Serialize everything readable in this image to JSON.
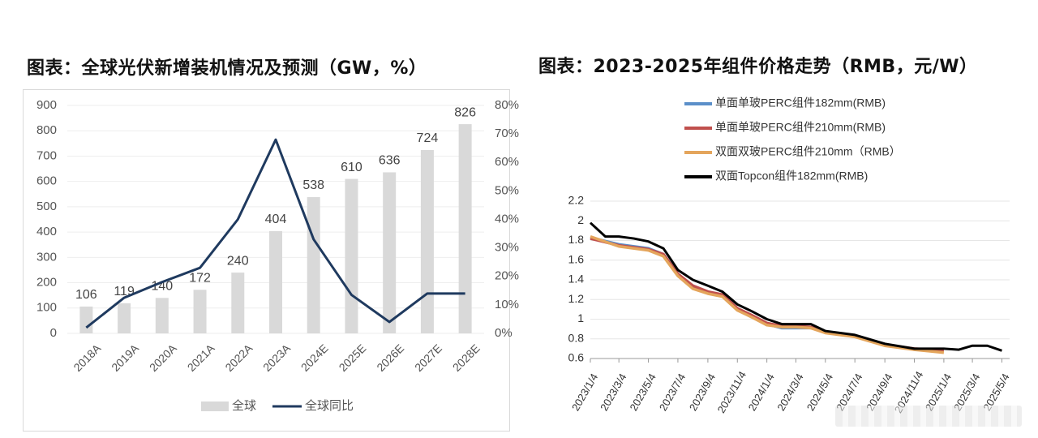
{
  "left": {
    "title": "图表：全球光伏新增装机情况及预测（GW，%）",
    "legend": [
      {
        "name": "全球",
        "color": "#d9d9d9"
      },
      {
        "name": "全球同比",
        "color": "#1f3a5f"
      }
    ]
  },
  "right": {
    "title": "图表：2023-2025年组件价格走势（RMB，元/W）",
    "legend": [
      {
        "name": "单面单玻PERC组件182mm(RMB)",
        "color": "#5b8fc9"
      },
      {
        "name": "单面单玻PERC组件210mm(RMB)",
        "color": "#c0504d"
      },
      {
        "name": "双面双玻PERC组件210mm（RMB）",
        "color": "#e4a55c"
      },
      {
        "name": "双面Topcon组件182mm(RMB)",
        "color": "#000000"
      }
    ]
  },
  "chart_data": [
    {
      "type": "bar",
      "title": "图表：全球光伏新增装机情况及预测（GW，%）",
      "categories": [
        "2018A",
        "2019A",
        "2020A",
        "2021A",
        "2022A",
        "2023A",
        "2024E",
        "2025E",
        "2026E",
        "2027E",
        "2028E"
      ],
      "ylim": [
        0,
        900
      ],
      "y2lim": [
        0,
        0.8
      ],
      "y_ticks": [
        "0",
        "100",
        "200",
        "300",
        "400",
        "500",
        "600",
        "700",
        "800",
        "900"
      ],
      "y2_ticks": [
        "0%",
        "10%",
        "20%",
        "30%",
        "40%",
        "50%",
        "60%",
        "70%",
        "80%"
      ],
      "series": [
        {
          "name": "全球",
          "type": "bar",
          "color": "#d9d9d9",
          "values": [
            106,
            119,
            140,
            172,
            240,
            404,
            538,
            610,
            636,
            724,
            826
          ],
          "labels": [
            "106",
            "119",
            "140",
            "172",
            "240",
            "404",
            "538",
            "610",
            "636",
            "724",
            "826"
          ]
        },
        {
          "name": "全球同比",
          "type": "line",
          "axis": "right",
          "color": "#1f3a5f",
          "values": [
            0.02,
            0.125,
            0.18,
            0.23,
            0.4,
            0.68,
            0.33,
            0.135,
            0.04,
            0.14,
            0.14
          ]
        }
      ],
      "grid": true,
      "legend": "bottom"
    },
    {
      "type": "line",
      "title": "图表：2023-2025年组件价格走势（RMB，元/W）",
      "x_ticks": [
        "2023/1/4",
        "2023/3/4",
        "2023/5/4",
        "2023/7/4",
        "2023/9/4",
        "2023/11/4",
        "2024/1/4",
        "2024/3/4",
        "2024/5/4",
        "2024/7/4",
        "2024/9/4",
        "2024/11/4",
        "2025/1/4",
        "2025/3/4",
        "2025/5/4"
      ],
      "y_ticks": [
        "0.6",
        "0.8",
        "1",
        "1.2",
        "1.4",
        "1.6",
        "1.8",
        "2",
        "2.2"
      ],
      "ylim": [
        0.6,
        2.2
      ],
      "grid": true,
      "legend": "top",
      "series": [
        {
          "name": "单面单玻PERC组件182mm(RMB)",
          "color": "#5b8fc9",
          "x": [
            "2023/1/4",
            "2023/3/4",
            "2023/5/4",
            "2023/6/4",
            "2023/7/4",
            "2023/8/4",
            "2023/9/4",
            "2023/10/4",
            "2023/11/4",
            "2023/12/4",
            "2024/1/4",
            "2024/2/4",
            "2024/3/4",
            "2024/4/4"
          ],
          "values": [
            1.83,
            1.76,
            1.72,
            1.66,
            1.45,
            1.33,
            1.27,
            1.24,
            1.1,
            1.02,
            0.95,
            0.91,
            0.91,
            0.91
          ]
        },
        {
          "name": "单面单玻PERC组件210mm(RMB)",
          "color": "#c0504d",
          "x": [
            "2023/1/4",
            "2023/3/4",
            "2023/5/4",
            "2023/6/4",
            "2023/7/4",
            "2023/8/4",
            "2023/9/4",
            "2023/10/4",
            "2023/11/4",
            "2023/12/4",
            "2024/1/4",
            "2024/2/4",
            "2024/3/4",
            "2024/4/4",
            "2024/5/4",
            "2024/7/4",
            "2024/9/4",
            "2024/11/4",
            "2025/1/4"
          ],
          "values": [
            1.82,
            1.75,
            1.71,
            1.66,
            1.46,
            1.34,
            1.28,
            1.25,
            1.11,
            1.04,
            0.96,
            0.93,
            0.93,
            0.92,
            0.87,
            0.83,
            0.74,
            0.7,
            0.68
          ]
        },
        {
          "name": "双面双玻PERC组件210mm（RMB）",
          "color": "#e4a55c",
          "x": [
            "2023/1/4",
            "2023/3/4",
            "2023/5/4",
            "2023/6/4",
            "2023/7/4",
            "2023/8/4",
            "2023/9/4",
            "2023/10/4",
            "2023/11/4",
            "2023/12/4",
            "2024/1/4",
            "2024/2/4",
            "2024/3/4",
            "2024/4/4",
            "2024/5/4",
            "2024/7/4",
            "2024/9/4",
            "2024/11/4",
            "2025/1/4"
          ],
          "values": [
            1.84,
            1.74,
            1.7,
            1.64,
            1.44,
            1.31,
            1.26,
            1.23,
            1.09,
            1.02,
            0.94,
            0.92,
            0.92,
            0.91,
            0.86,
            0.82,
            0.73,
            0.69,
            0.66
          ]
        },
        {
          "name": "双面Topcon组件182mm(RMB)",
          "color": "#000000",
          "x": [
            "2023/1/4",
            "2023/2/4",
            "2023/3/4",
            "2023/4/4",
            "2023/5/4",
            "2023/6/4",
            "2023/7/4",
            "2023/8/4",
            "2023/9/4",
            "2023/10/4",
            "2023/11/4",
            "2023/12/4",
            "2024/1/4",
            "2024/2/4",
            "2024/3/4",
            "2024/4/4",
            "2024/5/4",
            "2024/7/4",
            "2024/9/4",
            "2024/11/4",
            "2025/1/4",
            "2025/2/4",
            "2025/3/4",
            "2025/4/4",
            "2025/5/4"
          ],
          "values": [
            1.98,
            1.84,
            1.84,
            1.82,
            1.79,
            1.72,
            1.5,
            1.4,
            1.34,
            1.28,
            1.15,
            1.08,
            1.0,
            0.95,
            0.95,
            0.95,
            0.88,
            0.84,
            0.75,
            0.7,
            0.7,
            0.69,
            0.73,
            0.73,
            0.68
          ]
        }
      ]
    }
  ]
}
